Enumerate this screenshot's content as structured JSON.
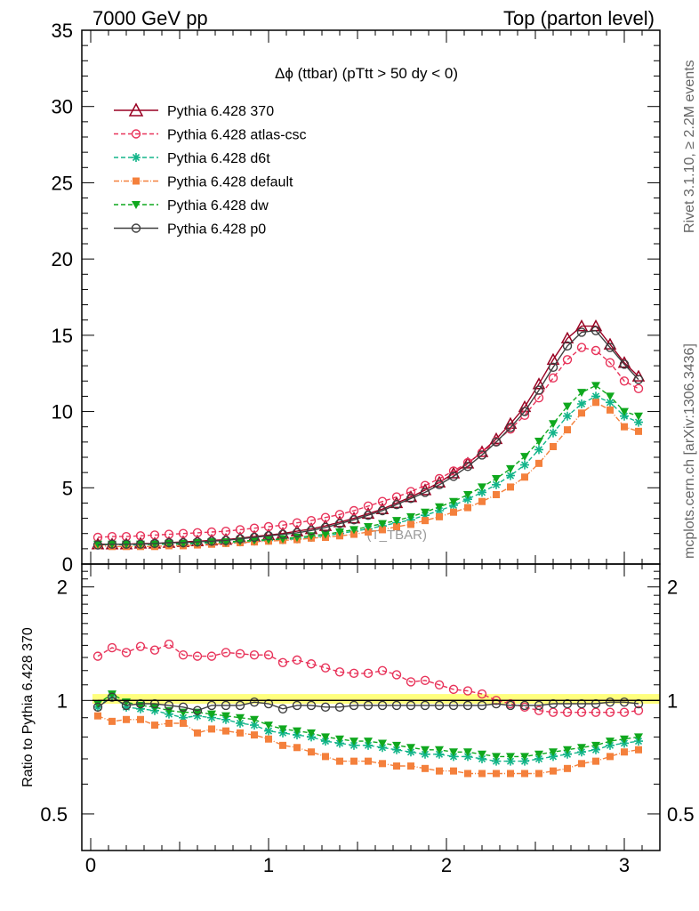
{
  "header": {
    "left": "7000 GeV pp",
    "right": "Top (parton level)"
  },
  "side_labels": {
    "rivet": "Rivet 3.1.10, ≥ 2.2M events",
    "mcplots": "mcplots.cern.ch [arXiv:1306.3436]"
  },
  "chart_data": [
    {
      "type": "line",
      "title": "Δϕ (ttbar) (pTtt > 50 dy < 0)",
      "watermark": "(T_TBAR)",
      "xlim": [
        -0.05,
        3.2
      ],
      "ylim": [
        0,
        35
      ],
      "yticks": [
        0,
        5,
        10,
        15,
        20,
        25,
        30,
        35
      ],
      "legend_position": "top-left",
      "x": [
        0.04,
        0.12,
        0.2,
        0.28,
        0.36,
        0.44,
        0.52,
        0.6,
        0.68,
        0.76,
        0.84,
        0.92,
        1.0,
        1.08,
        1.16,
        1.24,
        1.32,
        1.4,
        1.48,
        1.56,
        1.64,
        1.72,
        1.8,
        1.88,
        1.96,
        2.04,
        2.12,
        2.2,
        2.28,
        2.36,
        2.44,
        2.52,
        2.6,
        2.68,
        2.76,
        2.84,
        2.92,
        3.0,
        3.08
      ],
      "series": [
        {
          "name": "Pythia 6.428 370",
          "color": "#990022",
          "dash": "",
          "marker": "triangle-open",
          "values": [
            1.3,
            1.3,
            1.3,
            1.35,
            1.35,
            1.4,
            1.45,
            1.5,
            1.55,
            1.6,
            1.7,
            1.8,
            1.9,
            2.0,
            2.15,
            2.3,
            2.5,
            2.75,
            3.0,
            3.3,
            3.6,
            4.0,
            4.4,
            4.85,
            5.35,
            5.95,
            6.6,
            7.35,
            8.2,
            9.2,
            10.3,
            11.8,
            13.4,
            14.8,
            15.6,
            15.6,
            14.4,
            13.2,
            12.3
          ]
        },
        {
          "name": "Pythia 6.428 atlas-csc",
          "color": "#e8335a",
          "dash": "5,3",
          "marker": "circle-open",
          "values": [
            1.75,
            1.8,
            1.8,
            1.85,
            1.9,
            1.95,
            2.0,
            2.05,
            2.1,
            2.15,
            2.25,
            2.35,
            2.45,
            2.55,
            2.7,
            2.85,
            3.05,
            3.25,
            3.5,
            3.8,
            4.1,
            4.4,
            4.75,
            5.15,
            5.6,
            6.1,
            6.65,
            7.3,
            8.05,
            8.85,
            9.75,
            10.9,
            12.2,
            13.4,
            14.2,
            14.0,
            13.2,
            12.0,
            11.5
          ]
        },
        {
          "name": "Pythia 6.428 d6t",
          "color": "#13b58a",
          "dash": "5,3",
          "marker": "star",
          "values": [
            1.25,
            1.3,
            1.25,
            1.25,
            1.3,
            1.3,
            1.3,
            1.35,
            1.4,
            1.4,
            1.45,
            1.5,
            1.55,
            1.6,
            1.65,
            1.75,
            1.85,
            2.0,
            2.15,
            2.3,
            2.5,
            2.7,
            2.9,
            3.2,
            3.5,
            3.85,
            4.25,
            4.7,
            5.2,
            5.8,
            6.5,
            7.5,
            8.6,
            9.7,
            10.5,
            11.0,
            10.6,
            9.7,
            9.3
          ]
        },
        {
          "name": "Pythia 6.428 default",
          "color": "#f4803c",
          "dash": "6,2,1,2",
          "marker": "square",
          "values": [
            1.2,
            1.15,
            1.15,
            1.15,
            1.15,
            1.2,
            1.2,
            1.25,
            1.3,
            1.35,
            1.4,
            1.45,
            1.5,
            1.55,
            1.6,
            1.7,
            1.75,
            1.85,
            1.95,
            2.1,
            2.25,
            2.45,
            2.6,
            2.85,
            3.1,
            3.4,
            3.7,
            4.1,
            4.55,
            5.05,
            5.7,
            6.6,
            7.7,
            8.8,
            9.9,
            10.6,
            10.1,
            9.0,
            8.7
          ]
        },
        {
          "name": "Pythia 6.428 dw",
          "color": "#0fa81e",
          "dash": "5,3",
          "marker": "triangle-down",
          "values": [
            1.3,
            1.3,
            1.3,
            1.3,
            1.3,
            1.35,
            1.35,
            1.4,
            1.45,
            1.45,
            1.5,
            1.55,
            1.6,
            1.65,
            1.75,
            1.85,
            1.95,
            2.1,
            2.25,
            2.45,
            2.65,
            2.85,
            3.1,
            3.4,
            3.75,
            4.1,
            4.55,
            5.05,
            5.6,
            6.25,
            7.05,
            8.05,
            9.2,
            10.35,
            11.25,
            11.7,
            11.0,
            10.0,
            9.7
          ]
        },
        {
          "name": "Pythia 6.428 p0",
          "color": "#3f3f3f",
          "dash": "",
          "marker": "circle-open",
          "values": [
            1.25,
            1.3,
            1.3,
            1.3,
            1.35,
            1.4,
            1.4,
            1.45,
            1.5,
            1.55,
            1.65,
            1.75,
            1.85,
            1.95,
            2.05,
            2.2,
            2.4,
            2.65,
            2.9,
            3.2,
            3.5,
            3.9,
            4.3,
            4.7,
            5.2,
            5.75,
            6.4,
            7.15,
            8.0,
            8.95,
            10.0,
            11.4,
            12.9,
            14.3,
            15.2,
            15.3,
            14.2,
            13.1,
            12.1
          ]
        }
      ]
    },
    {
      "type": "line",
      "ylabel": "Ratio to Pythia 6.428 370",
      "xlim": [
        -0.05,
        3.2
      ],
      "ylim": [
        0.4,
        2.3
      ],
      "log_y": true,
      "yticks": [
        0.5,
        1,
        2
      ],
      "xticks": [
        0,
        1,
        2,
        3
      ],
      "reference_band": {
        "low": 0.98,
        "high": 1.04,
        "color": "#ffff66"
      },
      "x": [
        0.04,
        0.12,
        0.2,
        0.28,
        0.36,
        0.44,
        0.52,
        0.6,
        0.68,
        0.76,
        0.84,
        0.92,
        1.0,
        1.08,
        1.16,
        1.24,
        1.32,
        1.4,
        1.48,
        1.56,
        1.64,
        1.72,
        1.8,
        1.88,
        1.96,
        2.04,
        2.12,
        2.2,
        2.28,
        2.36,
        2.44,
        2.52,
        2.6,
        2.68,
        2.76,
        2.84,
        2.92,
        3.0,
        3.08
      ],
      "series": [
        {
          "name": "Pythia 6.428 370",
          "color": "#990022",
          "dash": "",
          "marker": "none",
          "values": [
            1,
            1,
            1,
            1,
            1,
            1,
            1,
            1,
            1,
            1,
            1,
            1,
            1,
            1,
            1,
            1,
            1,
            1,
            1,
            1,
            1,
            1,
            1,
            1,
            1,
            1,
            1,
            1,
            1,
            1,
            1,
            1,
            1,
            1,
            1,
            1,
            1,
            1,
            1
          ]
        },
        {
          "name": "Pythia 6.428 atlas-csc",
          "color": "#e8335a",
          "dash": "5,3",
          "marker": "circle-open",
          "values": [
            1.31,
            1.38,
            1.34,
            1.39,
            1.36,
            1.41,
            1.32,
            1.31,
            1.31,
            1.34,
            1.33,
            1.32,
            1.32,
            1.26,
            1.28,
            1.25,
            1.22,
            1.19,
            1.18,
            1.18,
            1.2,
            1.17,
            1.12,
            1.13,
            1.1,
            1.07,
            1.06,
            1.04,
            1.0,
            0.98,
            0.96,
            0.94,
            0.93,
            0.93,
            0.93,
            0.93,
            0.93,
            0.93,
            0.94
          ]
        },
        {
          "name": "Pythia 6.428 d6t",
          "color": "#13b58a",
          "dash": "5,3",
          "marker": "star",
          "values": [
            0.96,
            1.03,
            0.96,
            0.95,
            0.94,
            0.92,
            0.9,
            0.91,
            0.9,
            0.89,
            0.87,
            0.86,
            0.83,
            0.82,
            0.81,
            0.8,
            0.78,
            0.77,
            0.76,
            0.76,
            0.75,
            0.74,
            0.73,
            0.72,
            0.72,
            0.71,
            0.71,
            0.7,
            0.69,
            0.69,
            0.69,
            0.7,
            0.71,
            0.72,
            0.73,
            0.74,
            0.76,
            0.77,
            0.78
          ]
        },
        {
          "name": "Pythia 6.428 default",
          "color": "#f4803c",
          "dash": "6,2,1,2",
          "marker": "square",
          "values": [
            0.91,
            0.88,
            0.89,
            0.89,
            0.86,
            0.87,
            0.87,
            0.82,
            0.84,
            0.83,
            0.82,
            0.81,
            0.79,
            0.76,
            0.75,
            0.73,
            0.71,
            0.69,
            0.69,
            0.69,
            0.68,
            0.67,
            0.67,
            0.66,
            0.65,
            0.65,
            0.64,
            0.64,
            0.64,
            0.64,
            0.64,
            0.64,
            0.65,
            0.66,
            0.68,
            0.69,
            0.71,
            0.73,
            0.74
          ]
        },
        {
          "name": "Pythia 6.428 dw",
          "color": "#0fa81e",
          "dash": "5,3",
          "marker": "triangle-down",
          "values": [
            0.98,
            1.04,
            0.99,
            0.97,
            0.96,
            0.94,
            0.93,
            0.93,
            0.92,
            0.91,
            0.9,
            0.89,
            0.86,
            0.84,
            0.83,
            0.82,
            0.8,
            0.79,
            0.78,
            0.78,
            0.77,
            0.76,
            0.75,
            0.74,
            0.74,
            0.73,
            0.73,
            0.72,
            0.71,
            0.71,
            0.71,
            0.72,
            0.73,
            0.74,
            0.75,
            0.76,
            0.78,
            0.79,
            0.8
          ]
        },
        {
          "name": "Pythia 6.428 p0",
          "color": "#3f3f3f",
          "dash": "",
          "marker": "circle-open",
          "values": [
            0.96,
            1.02,
            0.97,
            0.98,
            0.98,
            0.97,
            0.96,
            0.94,
            0.97,
            0.97,
            0.97,
            0.99,
            0.98,
            0.95,
            0.97,
            0.97,
            0.96,
            0.96,
            0.97,
            0.97,
            0.97,
            0.97,
            0.97,
            0.97,
            0.97,
            0.97,
            0.97,
            0.97,
            0.98,
            0.97,
            0.97,
            0.97,
            0.98,
            0.98,
            0.98,
            0.98,
            0.99,
            0.99,
            0.98
          ]
        }
      ]
    }
  ]
}
